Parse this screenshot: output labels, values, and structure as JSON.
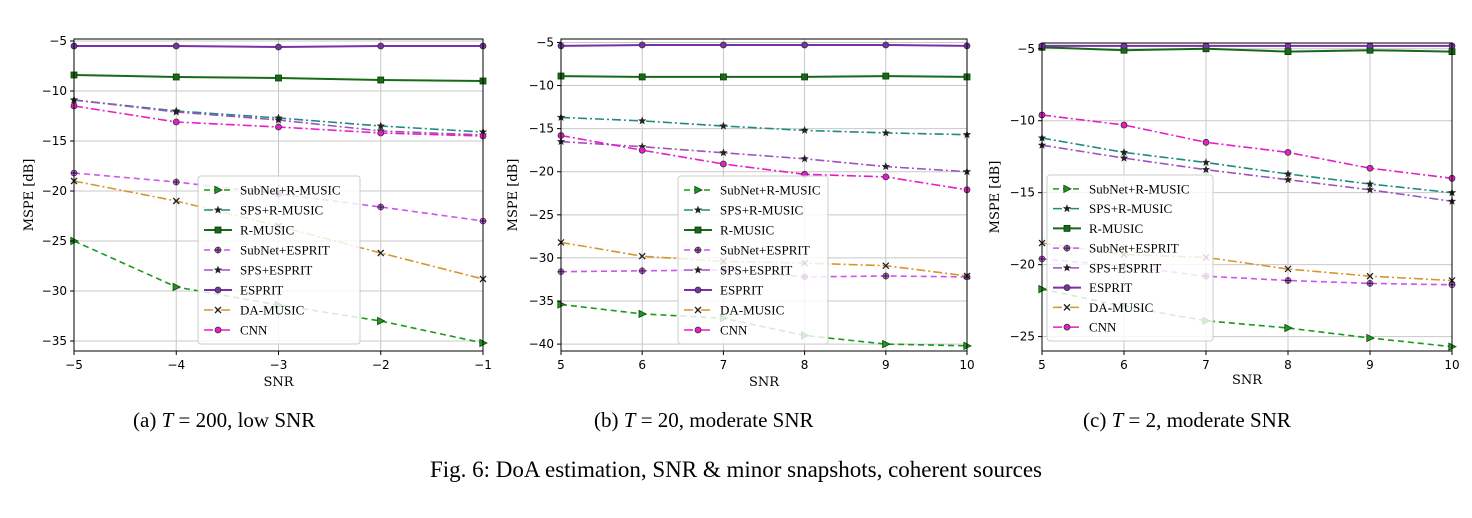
{
  "series_styles": [
    {
      "name": "SubNet+R-MUSIC",
      "color": "#1a9a1a",
      "dash": "6,4",
      "marker": "tri",
      "width": 1.6
    },
    {
      "name": "SPS+R-MUSIC",
      "color": "#1f8a80",
      "dash": "9,3,2,3",
      "marker": "star",
      "width": 1.6
    },
    {
      "name": "R-MUSIC",
      "color": "#176b17",
      "dash": "",
      "marker": "square",
      "width": 2
    },
    {
      "name": "SubNet+ESPRIT",
      "color": "#cc55ee",
      "dash": "6,4",
      "marker": "plus",
      "width": 1.6
    },
    {
      "name": "SPS+ESPRIT",
      "color": "#9e52c0",
      "dash": "9,3,2,3",
      "marker": "star",
      "width": 1.6
    },
    {
      "name": "ESPRIT",
      "color": "#7a30a8",
      "dash": "",
      "marker": "circle",
      "width": 2
    },
    {
      "name": "DA-MUSIC",
      "color": "#d4962e",
      "dash": "9,3,2,3",
      "marker": "x",
      "width": 1.6
    },
    {
      "name": "CNN",
      "color": "#e81cc8",
      "dash": "9,3,2,3",
      "marker": "circle",
      "width": 1.6
    }
  ],
  "chart_data": [
    {
      "type": "line",
      "xlabel": "SNR",
      "ylabel": "MSPE [dB]",
      "x": [
        -5,
        -4,
        -3,
        -2,
        -1
      ],
      "xlim": [
        -5,
        -1
      ],
      "ylim": [
        -36,
        -4.8
      ],
      "xticks": [
        -5,
        -4,
        -3,
        -2,
        -1
      ],
      "yticks": [
        -35,
        -30,
        -25,
        -20,
        -15,
        -10,
        -5
      ],
      "xtick_labels": [
        "−5",
        "−4",
        "−3",
        "−2",
        "−1"
      ],
      "ytick_labels": [
        "−35",
        "−30",
        "−25",
        "−20",
        "−15",
        "−10",
        "−5"
      ],
      "grid": true,
      "legend_position": "center",
      "series": [
        {
          "name": "SubNet+R-MUSIC",
          "values": [
            -25,
            -29.6,
            -31.4,
            -33.0,
            -35.2
          ]
        },
        {
          "name": "SPS+R-MUSIC",
          "values": [
            -10.9,
            -12.0,
            -12.7,
            -13.5,
            -14.1
          ]
        },
        {
          "name": "R-MUSIC",
          "values": [
            -8.4,
            -8.6,
            -8.7,
            -8.9,
            -9.0
          ]
        },
        {
          "name": "SubNet+ESPRIT",
          "values": [
            -18.2,
            -19.1,
            -20.3,
            -21.6,
            -23.0
          ]
        },
        {
          "name": "SPS+ESPRIT",
          "values": [
            -10.9,
            -12.1,
            -12.9,
            -14.0,
            -14.4
          ]
        },
        {
          "name": "ESPRIT",
          "values": [
            -5.5,
            -5.5,
            -5.6,
            -5.5,
            -5.5
          ]
        },
        {
          "name": "DA-MUSIC",
          "values": [
            -19.0,
            -21.0,
            -23.5,
            -26.2,
            -28.8
          ]
        },
        {
          "name": "CNN",
          "values": [
            -11.5,
            -13.1,
            -13.6,
            -14.2,
            -14.5
          ]
        }
      ]
    },
    {
      "type": "line",
      "xlabel": "SNR",
      "ylabel": "MSPE [dB]",
      "x": [
        5,
        6,
        7,
        8,
        9,
        10
      ],
      "xlim": [
        5,
        10
      ],
      "ylim": [
        -40.8,
        -4.6
      ],
      "xticks": [
        5,
        6,
        7,
        8,
        9,
        10
      ],
      "yticks": [
        -40,
        -35,
        -30,
        -25,
        -20,
        -15,
        -10,
        -5
      ],
      "xtick_labels": [
        "5",
        "6",
        "7",
        "8",
        "9",
        "10"
      ],
      "ytick_labels": [
        "−40",
        "−35",
        "−30",
        "−25",
        "−20",
        "−15",
        "−10",
        "−5"
      ],
      "grid": true,
      "legend_position": "center",
      "series": [
        {
          "name": "SubNet+R-MUSIC",
          "values": [
            -35.4,
            -36.5,
            -37.0,
            -39.0,
            -40.0,
            -40.2
          ]
        },
        {
          "name": "SPS+R-MUSIC",
          "values": [
            -13.7,
            -14.1,
            -14.7,
            -15.2,
            -15.5,
            -15.7
          ]
        },
        {
          "name": "R-MUSIC",
          "values": [
            -8.9,
            -9.0,
            -9.0,
            -9.0,
            -8.9,
            -9.0
          ]
        },
        {
          "name": "SubNet+ESPRIT",
          "values": [
            -31.6,
            -31.5,
            -31.4,
            -32.2,
            -32.1,
            -32.2
          ]
        },
        {
          "name": "SPS+ESPRIT",
          "values": [
            -16.5,
            -17.1,
            -17.8,
            -18.5,
            -19.4,
            -20.0
          ]
        },
        {
          "name": "ESPRIT",
          "values": [
            -5.4,
            -5.3,
            -5.3,
            -5.3,
            -5.3,
            -5.4
          ]
        },
        {
          "name": "DA-MUSIC",
          "values": [
            -28.2,
            -29.8,
            -30.4,
            -30.6,
            -30.9,
            -32.1
          ]
        },
        {
          "name": "CNN",
          "values": [
            -15.8,
            -17.5,
            -19.1,
            -20.3,
            -20.6,
            -22.1
          ]
        }
      ]
    },
    {
      "type": "line",
      "xlabel": "SNR",
      "ylabel": "MSPE [dB]",
      "x": [
        5,
        6,
        7,
        8,
        9,
        10
      ],
      "xlim": [
        5,
        10
      ],
      "ylim": [
        -26,
        -4.6
      ],
      "xticks": [
        5,
        6,
        7,
        8,
        9,
        10
      ],
      "yticks": [
        -25,
        -20,
        -15,
        -10,
        -5
      ],
      "xtick_labels": [
        "5",
        "6",
        "7",
        "8",
        "9",
        "10"
      ],
      "ytick_labels": [
        "−25",
        "−20",
        "−15",
        "−10",
        "−5"
      ],
      "grid": true,
      "legend_position": "left",
      "series": [
        {
          "name": "SubNet+R-MUSIC",
          "values": [
            -21.7,
            -22.9,
            -23.9,
            -24.4,
            -25.1,
            -25.7
          ]
        },
        {
          "name": "SPS+R-MUSIC",
          "values": [
            -11.2,
            -12.2,
            -12.9,
            -13.7,
            -14.4,
            -15.0
          ]
        },
        {
          "name": "R-MUSIC",
          "values": [
            -4.9,
            -5.1,
            -5.0,
            -5.2,
            -5.1,
            -5.2
          ]
        },
        {
          "name": "SubNet+ESPRIT",
          "values": [
            -19.6,
            -20.1,
            -20.8,
            -21.1,
            -21.3,
            -21.4
          ]
        },
        {
          "name": "SPS+ESPRIT",
          "values": [
            -11.7,
            -12.6,
            -13.4,
            -14.1,
            -14.8,
            -15.6
          ]
        },
        {
          "name": "ESPRIT",
          "values": [
            -4.8,
            -4.8,
            -4.8,
            -4.8,
            -4.8,
            -4.8
          ]
        },
        {
          "name": "DA-MUSIC",
          "values": [
            -18.5,
            -19.3,
            -19.5,
            -20.3,
            -20.8,
            -21.1
          ]
        },
        {
          "name": "CNN",
          "values": [
            -9.6,
            -10.3,
            -11.5,
            -12.2,
            -13.3,
            -14.0
          ]
        }
      ]
    }
  ],
  "captions": {
    "a": {
      "prefix": "(a) ",
      "var": "T",
      "rest": " = 200, low SNR"
    },
    "b": {
      "prefix": "(b) ",
      "var": "T",
      "rest": " = 20, moderate SNR"
    },
    "c": {
      "prefix": "(c) ",
      "var": "T",
      "rest": " = 2, moderate SNR"
    },
    "figure": "Fig. 6: DoA estimation, SNR & minor snapshots, coherent sources"
  }
}
